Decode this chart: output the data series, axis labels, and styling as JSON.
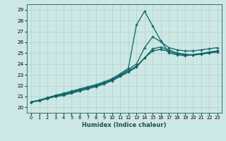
{
  "xlabel": "Humidex (Indice chaleur)",
  "xlim": [
    -0.5,
    23.5
  ],
  "ylim": [
    19.5,
    29.5
  ],
  "xticks": [
    0,
    1,
    2,
    3,
    4,
    5,
    6,
    7,
    8,
    9,
    10,
    11,
    12,
    13,
    14,
    15,
    16,
    17,
    18,
    19,
    20,
    21,
    22,
    23
  ],
  "yticks": [
    20,
    21,
    22,
    23,
    24,
    25,
    26,
    27,
    28,
    29
  ],
  "bg_color": "#cde8e4",
  "grid_color": "#afd0cc",
  "series": [
    {
      "x": [
        0,
        1,
        2,
        3,
        4,
        5,
        6,
        7,
        8,
        9,
        10,
        11,
        12,
        13,
        14,
        15,
        16,
        17,
        18,
        19,
        20,
        21,
        22,
        23
      ],
      "y": [
        20.5,
        20.65,
        20.85,
        21.1,
        21.2,
        21.4,
        21.6,
        21.8,
        22.0,
        22.25,
        22.55,
        23.0,
        23.5,
        24.0,
        25.5,
        26.5,
        26.05,
        25.5,
        25.3,
        25.2,
        25.2,
        25.3,
        25.4,
        25.5
      ],
      "color": "#1a6e6e",
      "lw": 1.0,
      "ms": 2.2
    },
    {
      "x": [
        0,
        1,
        2,
        3,
        4,
        5,
        6,
        7,
        8,
        9,
        10,
        11,
        12,
        13,
        14,
        15,
        16,
        17,
        18,
        19,
        20,
        21,
        22,
        23
      ],
      "y": [
        20.5,
        20.65,
        20.9,
        21.1,
        21.3,
        21.5,
        21.7,
        21.9,
        22.1,
        22.35,
        22.65,
        23.1,
        23.6,
        27.6,
        28.85,
        27.5,
        26.15,
        25.0,
        24.85,
        24.75,
        24.85,
        24.95,
        25.1,
        25.2
      ],
      "color": "#1a7070",
      "lw": 1.0,
      "ms": 2.2
    },
    {
      "x": [
        0,
        1,
        2,
        3,
        4,
        5,
        6,
        7,
        8,
        9,
        10,
        11,
        12,
        13,
        14,
        15,
        16,
        17,
        18,
        19,
        20,
        21,
        22,
        23
      ],
      "y": [
        20.5,
        20.6,
        20.8,
        21.0,
        21.1,
        21.3,
        21.5,
        21.7,
        21.9,
        22.15,
        22.45,
        22.85,
        23.25,
        23.7,
        24.55,
        25.4,
        25.55,
        25.3,
        25.0,
        24.9,
        24.8,
        24.9,
        25.0,
        25.1
      ],
      "color": "#157070",
      "lw": 1.0,
      "ms": 2.2
    },
    {
      "x": [
        0,
        1,
        2,
        3,
        4,
        5,
        6,
        7,
        8,
        9,
        10,
        11,
        12,
        13,
        14,
        15,
        16,
        17,
        18,
        19,
        20,
        21,
        22,
        23
      ],
      "y": [
        20.5,
        20.65,
        20.85,
        21.05,
        21.2,
        21.4,
        21.6,
        21.8,
        22.0,
        22.25,
        22.55,
        22.95,
        23.35,
        23.8,
        24.55,
        25.2,
        25.35,
        25.15,
        24.95,
        24.85,
        24.85,
        24.95,
        25.05,
        25.2
      ],
      "color": "#106060",
      "lw": 1.0,
      "ms": 2.2
    }
  ]
}
